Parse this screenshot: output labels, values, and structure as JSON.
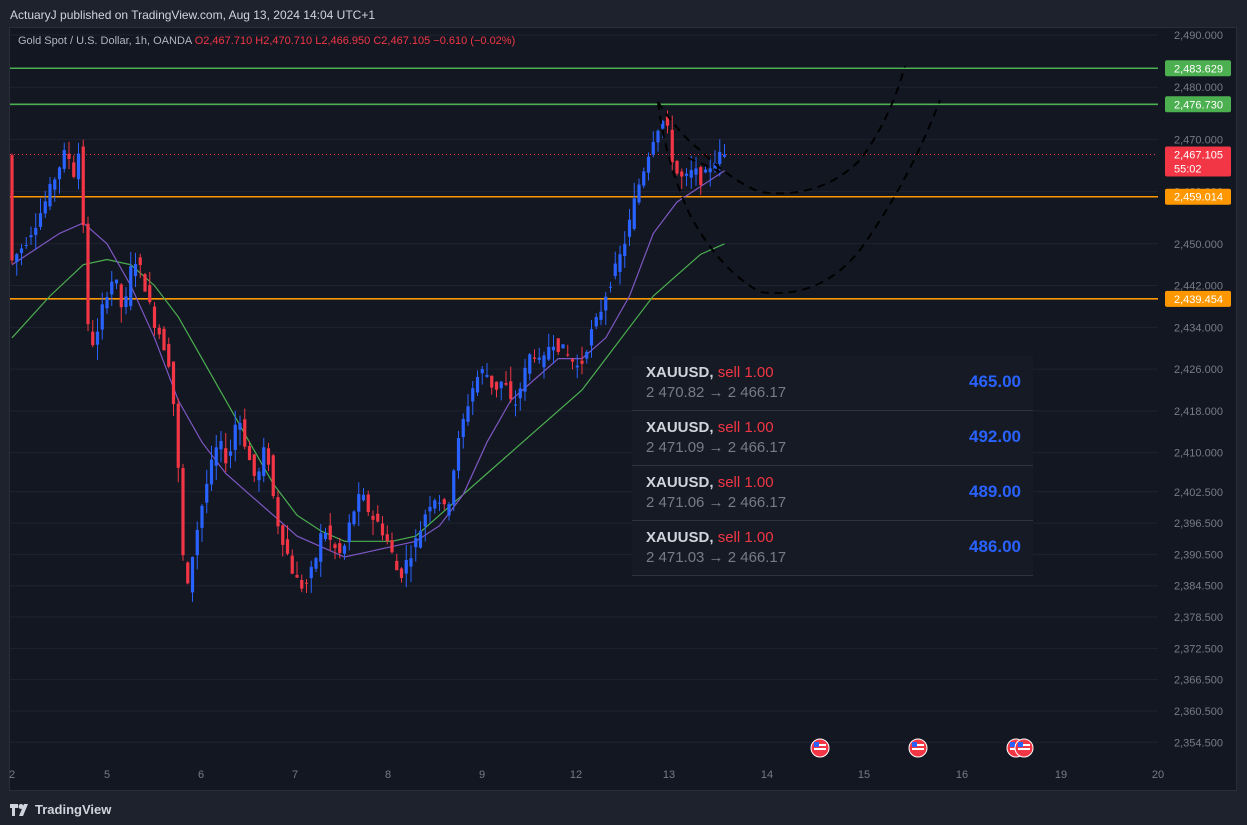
{
  "header": {
    "publisher_line": "ActuaryJ published on TradingView.com, Aug 13, 2024 14:04 UTC+1"
  },
  "legend": {
    "symbol": "Gold Spot / U.S. Dollar, 1h, OANDA",
    "o": "O2,467.710",
    "h": "H2,470.710",
    "l": "L2,466.950",
    "c": "C2,467.105",
    "change": "−0.610 (−0.02%)"
  },
  "chart_data": {
    "type": "candlestick",
    "title": "Gold Spot / U.S. Dollar, 1h, OANDA",
    "x_ticks": [
      "2",
      "5",
      "6",
      "7",
      "8",
      "9",
      "12",
      "13",
      "14",
      "15",
      "16",
      "19",
      "20"
    ],
    "y_ticks": [
      "2,490.000",
      "2,480.000",
      "2,470.000",
      "2,460.000",
      "2,450.000",
      "2,442.000",
      "2,434.000",
      "2,426.000",
      "2,418.000",
      "2,410.000",
      "2,402.500",
      "2,396.500",
      "2,390.500",
      "2,384.500",
      "2,378.500",
      "2,372.500",
      "2,366.500",
      "2,360.500",
      "2,354.500"
    ],
    "ylim": [
      2352,
      2492
    ],
    "price_path": [
      [
        0,
        2446
      ],
      [
        3,
        2450
      ],
      [
        6,
        2455
      ],
      [
        8,
        2459
      ],
      [
        10,
        2464
      ],
      [
        12,
        2468
      ],
      [
        14,
        2462
      ],
      [
        15,
        2473
      ],
      [
        16,
        2435
      ],
      [
        18,
        2430
      ],
      [
        20,
        2440
      ],
      [
        22,
        2444
      ],
      [
        24,
        2436
      ],
      [
        26,
        2448
      ],
      [
        28,
        2444
      ],
      [
        30,
        2436
      ],
      [
        32,
        2432
      ],
      [
        34,
        2426
      ],
      [
        36,
        2400
      ],
      [
        37,
        2380
      ],
      [
        38,
        2388
      ],
      [
        40,
        2398
      ],
      [
        42,
        2406
      ],
      [
        44,
        2412
      ],
      [
        46,
        2408
      ],
      [
        48,
        2418
      ],
      [
        50,
        2410
      ],
      [
        52,
        2404
      ],
      [
        54,
        2412
      ],
      [
        56,
        2398
      ],
      [
        58,
        2392
      ],
      [
        60,
        2386
      ],
      [
        62,
        2384
      ],
      [
        64,
        2388
      ],
      [
        66,
        2396
      ],
      [
        68,
        2392
      ],
      [
        70,
        2390
      ],
      [
        72,
        2398
      ],
      [
        74,
        2402
      ],
      [
        76,
        2398
      ],
      [
        78,
        2396
      ],
      [
        80,
        2392
      ],
      [
        82,
        2386
      ],
      [
        84,
        2390
      ],
      [
        86,
        2394
      ],
      [
        88,
        2400
      ],
      [
        90,
        2402
      ],
      [
        92,
        2398
      ],
      [
        94,
        2410
      ],
      [
        96,
        2418
      ],
      [
        98,
        2424
      ],
      [
        100,
        2426
      ],
      [
        102,
        2422
      ],
      [
        104,
        2424
      ],
      [
        106,
        2418
      ],
      [
        108,
        2424
      ],
      [
        110,
        2430
      ],
      [
        112,
        2426
      ],
      [
        114,
        2432
      ],
      [
        116,
        2430
      ],
      [
        118,
        2428
      ],
      [
        120,
        2426
      ],
      [
        122,
        2432
      ],
      [
        124,
        2436
      ],
      [
        126,
        2442
      ],
      [
        128,
        2446
      ],
      [
        130,
        2452
      ],
      [
        132,
        2460
      ],
      [
        134,
        2466
      ],
      [
        136,
        2472
      ],
      [
        138,
        2474
      ],
      [
        140,
        2464
      ],
      [
        142,
        2462
      ],
      [
        144,
        2464
      ],
      [
        146,
        2462
      ],
      [
        148,
        2466
      ],
      [
        150,
        2467
      ]
    ],
    "ma_fast": [
      [
        0,
        2446
      ],
      [
        10,
        2452
      ],
      [
        15,
        2454
      ],
      [
        20,
        2450
      ],
      [
        25,
        2442
      ],
      [
        30,
        2432
      ],
      [
        35,
        2420
      ],
      [
        40,
        2412
      ],
      [
        45,
        2406
      ],
      [
        50,
        2402
      ],
      [
        55,
        2398
      ],
      [
        60,
        2394
      ],
      [
        65,
        2392
      ],
      [
        70,
        2390
      ],
      [
        75,
        2391
      ],
      [
        80,
        2392
      ],
      [
        85,
        2393
      ],
      [
        90,
        2396
      ],
      [
        95,
        2402
      ],
      [
        100,
        2412
      ],
      [
        105,
        2420
      ],
      [
        110,
        2424
      ],
      [
        115,
        2428
      ],
      [
        120,
        2428
      ],
      [
        125,
        2432
      ],
      [
        130,
        2440
      ],
      [
        135,
        2452
      ],
      [
        140,
        2458
      ],
      [
        145,
        2461
      ],
      [
        150,
        2464
      ]
    ],
    "ma_slow": [
      [
        0,
        2432
      ],
      [
        8,
        2440
      ],
      [
        15,
        2446
      ],
      [
        20,
        2447
      ],
      [
        25,
        2446
      ],
      [
        30,
        2442
      ],
      [
        35,
        2436
      ],
      [
        40,
        2428
      ],
      [
        45,
        2420
      ],
      [
        50,
        2412
      ],
      [
        55,
        2404
      ],
      [
        60,
        2398
      ],
      [
        65,
        2395
      ],
      [
        70,
        2393
      ],
      [
        75,
        2393
      ],
      [
        80,
        2393
      ],
      [
        85,
        2394
      ],
      [
        90,
        2398
      ],
      [
        95,
        2402
      ],
      [
        100,
        2406
      ],
      [
        105,
        2410
      ],
      [
        110,
        2414
      ],
      [
        115,
        2418
      ],
      [
        120,
        2422
      ],
      [
        125,
        2428
      ],
      [
        130,
        2434
      ],
      [
        135,
        2440
      ],
      [
        140,
        2444
      ],
      [
        145,
        2448
      ],
      [
        150,
        2450
      ]
    ],
    "horizontal_levels": [
      {
        "label": "2,483.629",
        "value": 2483.629,
        "color": "#4caf50"
      },
      {
        "label": "2,476.730",
        "value": 2476.73,
        "color": "#4caf50"
      },
      {
        "label": "2,459.014",
        "value": 2459.014,
        "color": "#ff9800"
      },
      {
        "label": "2,439.454",
        "value": 2439.454,
        "color": "#ff9800"
      }
    ],
    "last_price": {
      "label": "2,467.105",
      "countdown": "55:02",
      "value": 2467.105,
      "color": "#f23645"
    }
  },
  "trades": [
    {
      "symbol": "XAUUSD",
      "side": "sell 1.00",
      "prices": "2 470.82 → 2 466.17",
      "pnl": "465.00"
    },
    {
      "symbol": "XAUUSD",
      "side": "sell 1.00",
      "prices": "2 471.09 → 2 466.17",
      "pnl": "492.00"
    },
    {
      "symbol": "XAUUSD",
      "side": "sell 1.00",
      "prices": "2 471.06 → 2 466.17",
      "pnl": "489.00"
    },
    {
      "symbol": "XAUUSD",
      "side": "sell 1.00",
      "prices": "2 471.03 → 2 466.17",
      "pnl": "486.00"
    }
  ],
  "footer": {
    "brand": "TradingView"
  },
  "colors": {
    "up": "#2962ff",
    "down": "#f23645",
    "ma_fast": "#7e57c2",
    "ma_slow": "#4caf50",
    "projection": "#000000"
  }
}
